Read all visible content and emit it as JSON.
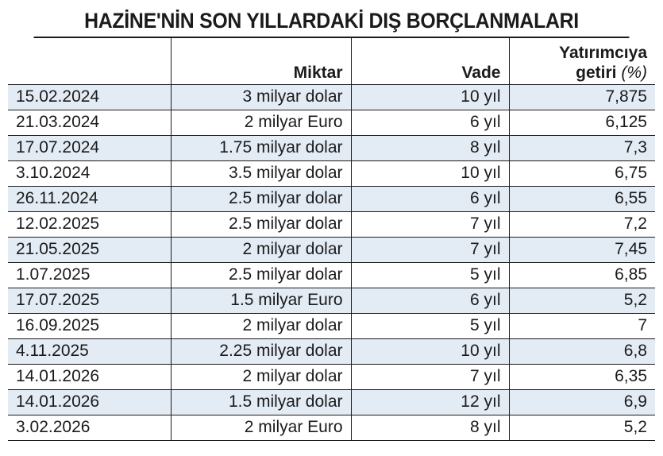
{
  "title": "HAZİNE'NİN SON YILLARDAKİ DIŞ BORÇLANMALARI",
  "headers": {
    "date": "",
    "amount": "Miktar",
    "term": "Vade",
    "yield_line1": "Yatırımcıya",
    "yield_line2": "getiri",
    "yield_unit": "(%)"
  },
  "colors": {
    "row_shade": "#e3ebf4",
    "text": "#1b1b1b"
  },
  "rows": [
    {
      "date": "15.02.2024",
      "amount": "3 milyar dolar",
      "term": "10 yıl",
      "yield": "7,875"
    },
    {
      "date": "21.03.2024",
      "amount": "2 milyar Euro",
      "term": "6 yıl",
      "yield": "6,125"
    },
    {
      "date": "17.07.2024",
      "amount": "1.75 milyar dolar",
      "term": "8 yıl",
      "yield": "7,3"
    },
    {
      "date": "3.10.2024",
      "amount": "3.5 milyar dolar",
      "term": "10 yıl",
      "yield": "6,75"
    },
    {
      "date": "26.11.2024",
      "amount": "2.5 milyar dolar",
      "term": "6 yıl",
      "yield": "6,55"
    },
    {
      "date": "12.02.2025",
      "amount": "2.5 milyar dolar",
      "term": "7 yıl",
      "yield": "7,2"
    },
    {
      "date": "21.05.2025",
      "amount": "2 milyar dolar",
      "term": "7 yıl",
      "yield": "7,45"
    },
    {
      "date": "1.07.2025",
      "amount": "2.5 milyar dolar",
      "term": "5 yıl",
      "yield": "6,85"
    },
    {
      "date": "17.07.2025",
      "amount": "1.5 milyar Euro",
      "term": "6 yıl",
      "yield": "5,2"
    },
    {
      "date": "16.09.2025",
      "amount": "2 milyar dolar",
      "term": "5 yıl",
      "yield": "7"
    },
    {
      "date": "4.11.2025",
      "amount": "2.25 milyar dolar",
      "term": "10 yıl",
      "yield": "6,8"
    },
    {
      "date": "14.01.2026",
      "amount": "2 milyar dolar",
      "term": "7 yıl",
      "yield": "6,35"
    },
    {
      "date": "14.01.2026",
      "amount": "1.5 milyar dolar",
      "term": "12 yıl",
      "yield": "6,9"
    },
    {
      "date": "3.02.2026",
      "amount": "2 milyar Euro",
      "term": "8 yıl",
      "yield": "5,2"
    }
  ]
}
